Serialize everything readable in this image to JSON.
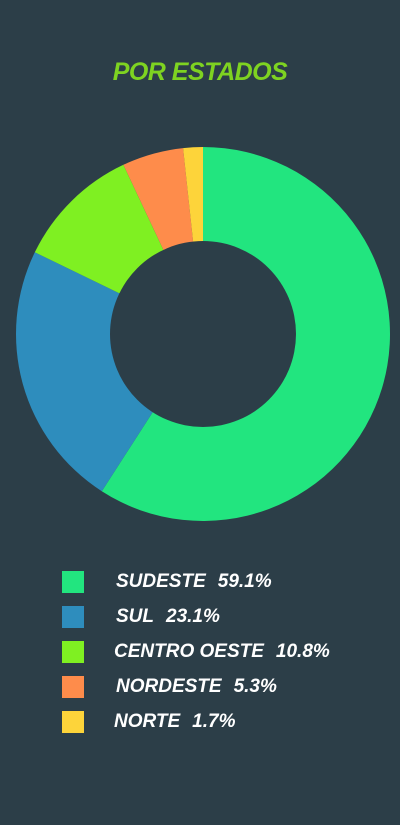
{
  "colors": {
    "background": "#2c3e48",
    "title": "#7ed321"
  },
  "chart_data": {
    "type": "pie",
    "title": "POR ESTADOS",
    "donut": true,
    "legend_placement": "bottom",
    "slices": [
      {
        "label": "SUDESTE",
        "value": 59.1,
        "display": "59.1%",
        "color": "#22e57f"
      },
      {
        "label": "SUL",
        "value": 23.1,
        "display": "23.1%",
        "color": "#2e8dbd"
      },
      {
        "label": "CENTRO OESTE",
        "value": 10.8,
        "display": "10.8%",
        "color": "#7ff022"
      },
      {
        "label": "NORDESTE",
        "value": 5.3,
        "display": "5.3%",
        "color": "#fe8c4b"
      },
      {
        "label": "NORTE",
        "value": 1.7,
        "display": "1.7%",
        "color": "#fdd43a"
      }
    ]
  }
}
